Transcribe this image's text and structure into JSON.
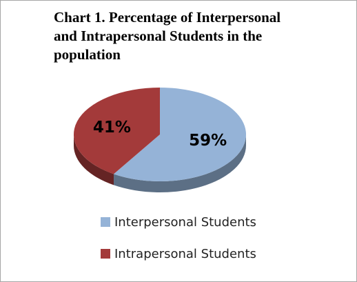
{
  "chart_data": {
    "type": "pie3d",
    "title": "Chart 1. Percentage of Interpersonal and Intrapersonal Students in the population",
    "categories": [
      "Interpersonal Students",
      "Intrapersonal Students"
    ],
    "values": [
      59,
      41
    ],
    "value_labels": [
      "59%",
      "41%"
    ],
    "colors": [
      "#95b3d7",
      "#a33a3a"
    ],
    "legend": "bottom"
  }
}
